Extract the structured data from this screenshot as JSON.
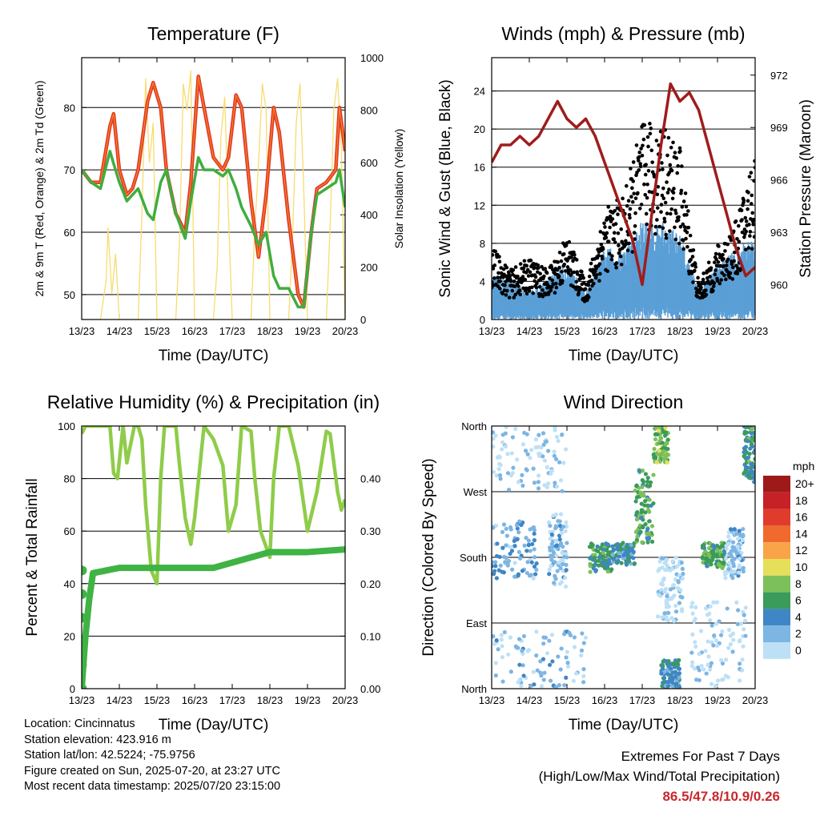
{
  "x_axis": {
    "ticks": [
      "13/23",
      "14/23",
      "15/23",
      "16/23",
      "17/23",
      "18/23",
      "19/23",
      "20/23"
    ],
    "label": "Time (Day/UTC)"
  },
  "colors": {
    "temp_2m": "#e13a2a",
    "temp_9m": "#f5861f",
    "dewpoint": "#3fae3f",
    "solar": "#f7dc6f",
    "wind": "#5a9fd6",
    "gust": "#000000",
    "pressure": "#a01c1c",
    "rh": "#8fcc4a",
    "precip": "#3fb344"
  },
  "info": {
    "location": "Location: Cincinnatus",
    "elevation": "Station elevation: 423.916 m",
    "latlon": "Station lat/lon: 42.5224; -75.9756",
    "created": "Figure created on Sun, 2025-07-20, at 23:27 UTC",
    "recent": "Most recent data timestamp: 2025/07/20 23:15:00"
  },
  "extremes": {
    "title": "Extremes For Past 7 Days",
    "subtitle": "(High/Low/Max Wind/Total Precipitation)",
    "values": "86.5/47.8/10.9/0.26"
  },
  "chart_data": [
    {
      "id": "temperature",
      "type": "line",
      "title": "Temperature (F)",
      "xlabel": "Time (Day/UTC)",
      "ylabel": "2m & 9m T (Red, Orange) & 2m Td (Green)",
      "ylabel_right": "Solar Insolation (Yellow)",
      "ylim": [
        46,
        88
      ],
      "yticks": [
        50,
        60,
        70,
        80
      ],
      "ylim_right": [
        0,
        1000
      ],
      "yticks_right": [
        0,
        200,
        400,
        600,
        800,
        1000
      ],
      "x_range_days": [
        0,
        7
      ],
      "series": [
        {
          "axis": "left",
          "color": "#e13a2a",
          "x": [
            0,
            0.25,
            0.5,
            0.75,
            0.85,
            1.0,
            1.2,
            1.35,
            1.5,
            1.75,
            1.9,
            2.1,
            2.25,
            2.5,
            2.75,
            2.9,
            3.1,
            3.25,
            3.5,
            3.75,
            3.9,
            4.1,
            4.25,
            4.5,
            4.7,
            4.9,
            5.1,
            5.25,
            5.5,
            5.75,
            5.9,
            6.1,
            6.25,
            6.5,
            6.75,
            6.85,
            7.0
          ],
          "values": [
            70,
            68,
            68,
            77,
            79,
            70,
            66,
            67,
            70,
            81,
            84,
            80,
            70,
            63,
            60,
            68,
            85,
            80,
            72,
            70,
            72,
            82,
            80,
            65,
            56,
            66,
            80,
            76,
            62,
            50,
            48,
            60,
            67,
            68,
            70,
            80,
            73
          ]
        },
        {
          "axis": "left",
          "color": "#3fae3f",
          "x": [
            0,
            0.25,
            0.5,
            0.75,
            0.85,
            1.0,
            1.2,
            1.35,
            1.5,
            1.75,
            1.9,
            2.1,
            2.25,
            2.5,
            2.75,
            2.9,
            3.1,
            3.25,
            3.5,
            3.75,
            3.9,
            4.1,
            4.25,
            4.5,
            4.7,
            4.9,
            5.1,
            5.25,
            5.5,
            5.75,
            5.9,
            6.1,
            6.25,
            6.5,
            6.75,
            6.85,
            7.0
          ],
          "values": [
            70,
            68,
            67,
            73,
            71,
            68,
            65,
            66,
            67,
            63,
            62,
            68,
            70,
            63,
            59,
            65,
            72,
            70,
            70,
            69,
            70,
            67,
            64,
            61,
            58,
            60,
            53,
            51,
            51,
            48,
            48,
            60,
            66,
            67,
            68,
            70,
            64
          ]
        },
        {
          "axis": "right",
          "color": "#f7dc6f",
          "x": [
            0,
            0.3,
            0.5,
            0.65,
            0.7,
            0.8,
            0.9,
            1.0,
            1.3,
            1.5,
            1.6,
            1.7,
            1.8,
            1.9,
            2.0,
            2.3,
            2.5,
            2.6,
            2.7,
            2.8,
            2.9,
            3.0,
            3.3,
            3.5,
            3.6,
            3.7,
            3.8,
            3.9,
            4.0,
            4.3,
            4.5,
            4.6,
            4.7,
            4.8,
            4.9,
            5.0,
            5.3,
            5.5,
            5.6,
            5.7,
            5.8,
            5.9,
            6.0,
            6.3,
            6.5,
            6.6,
            6.7,
            6.8,
            6.9,
            7.0
          ],
          "values": [
            0,
            0,
            0,
            150,
            350,
            100,
            250,
            0,
            0,
            0,
            400,
            920,
            600,
            750,
            0,
            0,
            0,
            300,
            900,
            800,
            950,
            0,
            0,
            0,
            200,
            700,
            850,
            400,
            0,
            0,
            0,
            350,
            600,
            900,
            800,
            0,
            0,
            0,
            300,
            750,
            900,
            500,
            0,
            0,
            0,
            350,
            800,
            920,
            650,
            0
          ]
        }
      ]
    },
    {
      "id": "winds",
      "type": "line",
      "title": "Winds (mph) & Pressure (mb)",
      "xlabel": "Time (Day/UTC)",
      "ylabel": "Sonic Wind & Gust (Blue, Black)",
      "ylabel_right": "Station Pressure (Maroon)",
      "ylim": [
        0,
        27.5
      ],
      "yticks": [
        0,
        4,
        8,
        12,
        16,
        20,
        24
      ],
      "ylim_right": [
        958,
        973
      ],
      "yticks_right": [
        960,
        963,
        966,
        969,
        972
      ],
      "x_range_days": [
        0,
        7
      ],
      "series": [
        {
          "axis": "left",
          "style": "band",
          "color": "#5a9fd6",
          "x": [
            0,
            0.5,
            1.0,
            1.5,
            2.0,
            2.5,
            3.0,
            3.5,
            4.0,
            4.5,
            5.0,
            5.5,
            6.0,
            6.5,
            7.0
          ],
          "values": [
            3,
            3,
            2,
            3,
            4,
            2,
            5,
            5,
            7,
            7,
            6,
            2,
            4,
            5,
            6
          ]
        },
        {
          "axis": "left",
          "style": "dots",
          "color": "#000000",
          "x": [
            0,
            0.5,
            1.0,
            1.5,
            2.0,
            2.5,
            3.0,
            3.5,
            4.0,
            4.5,
            5.0,
            5.5,
            6.0,
            6.5,
            7.0
          ],
          "values": [
            6,
            4,
            5,
            4,
            7,
            3,
            9,
            10,
            16,
            16,
            14,
            3,
            6,
            8,
            14
          ]
        },
        {
          "axis": "right",
          "color": "#a01c1c",
          "x": [
            0,
            0.25,
            0.5,
            0.75,
            1.0,
            1.25,
            1.5,
            1.75,
            2.0,
            2.25,
            2.5,
            2.75,
            3.0,
            3.25,
            3.5,
            3.75,
            4.0,
            4.25,
            4.5,
            4.75,
            5.0,
            5.25,
            5.5,
            5.75,
            6.0,
            6.25,
            6.5,
            6.75,
            7.0
          ],
          "values": [
            967.0,
            968.0,
            968.0,
            968.5,
            968.0,
            968.5,
            969.5,
            970.5,
            969.5,
            969.0,
            969.5,
            968.5,
            967.0,
            965.5,
            964.0,
            962.5,
            960.0,
            964.0,
            968.0,
            971.5,
            970.5,
            971.0,
            970.0,
            968.0,
            966.0,
            964.0,
            962.0,
            960.5,
            961.0
          ]
        }
      ]
    },
    {
      "id": "rh_precip",
      "type": "line",
      "title": "Relative Humidity (%) & Precipitation (in)",
      "xlabel": "Time (Day/UTC)",
      "ylabel": "Percent & Total Rainfall",
      "ylim": [
        0,
        100
      ],
      "yticks": [
        0,
        20,
        40,
        60,
        80,
        100
      ],
      "ylim_right": [
        0,
        0.5
      ],
      "yticks_right": [
        "0.00",
        "0.10",
        "0.20",
        "0.30",
        "0.40"
      ],
      "x_range_days": [
        0,
        7
      ],
      "series": [
        {
          "axis": "left",
          "color": "#8fcc4a",
          "x": [
            0,
            0.1,
            0.75,
            0.85,
            0.95,
            1.1,
            1.2,
            1.4,
            1.5,
            1.6,
            1.7,
            1.85,
            2.0,
            2.1,
            2.2,
            2.5,
            2.6,
            2.75,
            2.9,
            3.0,
            3.25,
            3.5,
            3.75,
            3.9,
            4.1,
            4.25,
            4.5,
            4.6,
            4.75,
            5.0,
            5.1,
            5.25,
            5.5,
            5.75,
            6.0,
            6.25,
            6.5,
            6.6,
            6.8,
            6.9,
            7.0
          ],
          "values": [
            97,
            100,
            100,
            82,
            80,
            100,
            86,
            100,
            100,
            95,
            70,
            45,
            40,
            80,
            100,
            100,
            85,
            65,
            55,
            65,
            100,
            95,
            85,
            60,
            70,
            100,
            98,
            80,
            60,
            50,
            80,
            100,
            100,
            85,
            60,
            75,
            98,
            97,
            75,
            68,
            72
          ]
        },
        {
          "axis": "right",
          "color": "#3fb344",
          "style": "step",
          "x": [
            0,
            0.1,
            0.2,
            0.3,
            1.0,
            2.0,
            3.0,
            3.5,
            4.0,
            4.5,
            5.0,
            6.0,
            7.0
          ],
          "values": [
            0.0,
            0.1,
            0.17,
            0.22,
            0.23,
            0.23,
            0.23,
            0.23,
            0.24,
            0.25,
            0.26,
            0.26,
            0.265
          ]
        }
      ]
    },
    {
      "id": "wind_direction",
      "type": "scatter",
      "title": "Wind Direction",
      "xlabel": "Time (Day/UTC)",
      "ylabel": "Direction (Colored By Speed)",
      "ylim": [
        0,
        360
      ],
      "ytick_labels": [
        "North",
        "East",
        "South",
        "West",
        "North"
      ],
      "yticks": [
        0,
        90,
        180,
        270,
        360
      ],
      "x_range_days": [
        0,
        7
      ],
      "legend": {
        "title": "mph",
        "placement": "right",
        "labels": [
          "20+",
          "18",
          "16",
          "14",
          "12",
          "10",
          "8",
          "6",
          "4",
          "2",
          "0"
        ],
        "colors": [
          "#9e1a1a",
          "#c62127",
          "#e03c2d",
          "#f06a2e",
          "#f9a448",
          "#e6df5a",
          "#7cc05c",
          "#3a9b5a",
          "#3f86c6",
          "#7db5e3",
          "#bde0f6"
        ]
      },
      "clusters": [
        {
          "x": [
            0.0,
            1.2
          ],
          "dir": [
            150,
            230
          ],
          "speed": 3
        },
        {
          "x": [
            1.5,
            2.0
          ],
          "dir": [
            140,
            240
          ],
          "speed": 2
        },
        {
          "x": [
            0.0,
            2.0
          ],
          "dir": [
            270,
            360
          ],
          "speed": 1
        },
        {
          "x": [
            0.0,
            2.5
          ],
          "dir": [
            0,
            80
          ],
          "speed": 2
        },
        {
          "x": [
            2.6,
            3.2
          ],
          "dir": [
            160,
            200
          ],
          "speed": 6
        },
        {
          "x": [
            3.2,
            3.8
          ],
          "dir": [
            170,
            200
          ],
          "speed": 5
        },
        {
          "x": [
            3.8,
            4.3
          ],
          "dir": [
            200,
            300
          ],
          "speed": 7
        },
        {
          "x": [
            4.3,
            4.7
          ],
          "dir": [
            310,
            360
          ],
          "speed": 8
        },
        {
          "x": [
            4.5,
            5.0
          ],
          "dir": [
            0,
            40
          ],
          "speed": 5
        },
        {
          "x": [
            4.4,
            5.1
          ],
          "dir": [
            90,
            180
          ],
          "speed": 1
        },
        {
          "x": [
            5.6,
            6.2
          ],
          "dir": [
            165,
            200
          ],
          "speed": 7
        },
        {
          "x": [
            6.2,
            6.7
          ],
          "dir": [
            150,
            220
          ],
          "speed": 2
        },
        {
          "x": [
            6.7,
            7.0
          ],
          "dir": [
            280,
            360
          ],
          "speed": 6
        },
        {
          "x": [
            5.3,
            6.8
          ],
          "dir": [
            0,
            120
          ],
          "speed": 1
        }
      ]
    }
  ]
}
